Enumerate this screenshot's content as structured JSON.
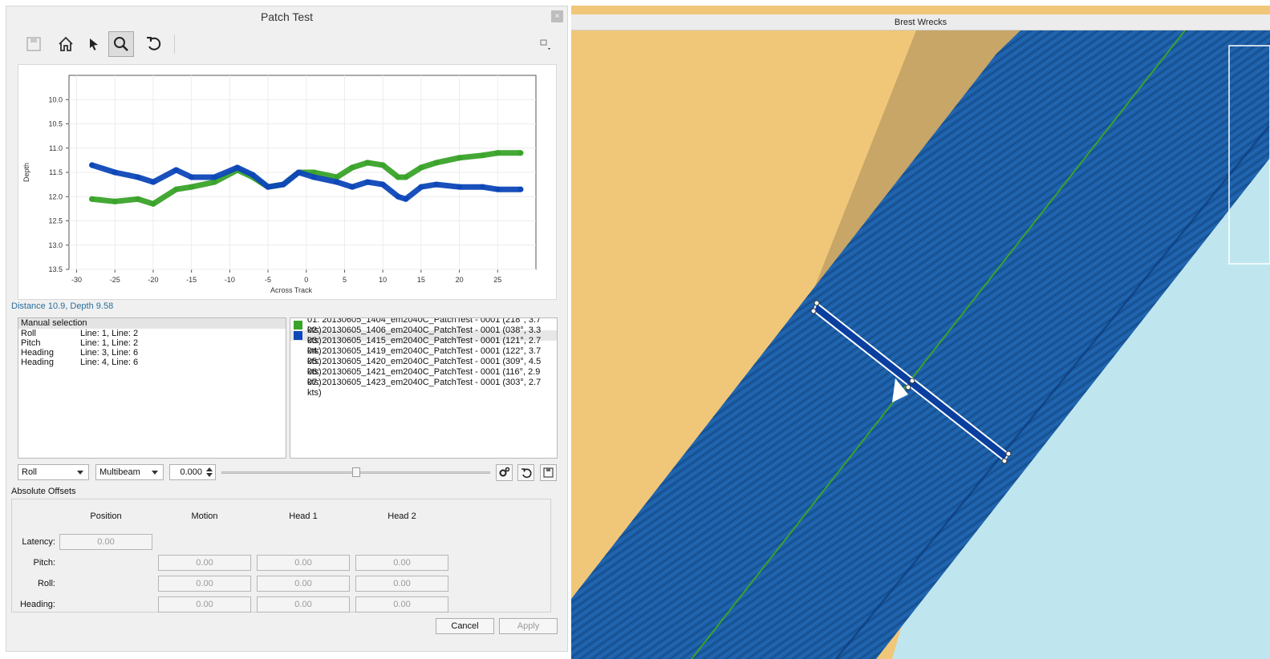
{
  "dialog": {
    "title": "Patch Test",
    "close_glyph": "×"
  },
  "toolbar": {
    "icons": [
      "save-icon",
      "home-icon",
      "pointer-icon",
      "zoom-icon",
      "undo-icon",
      "menu-icon"
    ]
  },
  "chart_data": {
    "type": "scatter",
    "xlabel": "Across Track",
    "ylabel": "Depth",
    "xlim": [
      -31,
      30
    ],
    "ylim": [
      13.5,
      9.5
    ],
    "x_ticks": [
      "-30",
      "-25",
      "-20",
      "-15",
      "-10",
      "-5",
      "0",
      "5",
      "10",
      "15",
      "20",
      "25"
    ],
    "y_ticks": [
      "10.0",
      "10.5",
      "11.0",
      "11.5",
      "12.0",
      "12.5",
      "13.0",
      "13.5"
    ],
    "grid": true,
    "series": [
      {
        "color": "#3aa32a",
        "x": [
          -28,
          -25,
          -22,
          -20,
          -17,
          -15,
          -12,
          -9,
          -7,
          -5,
          -3,
          -1,
          1,
          4,
          6,
          8,
          10,
          12,
          13,
          15,
          17,
          20,
          23,
          25,
          28
        ],
        "y": [
          12.05,
          12.1,
          12.05,
          12.15,
          11.85,
          11.8,
          11.7,
          11.45,
          11.6,
          11.8,
          11.75,
          11.5,
          11.5,
          11.6,
          11.4,
          11.3,
          11.35,
          11.6,
          11.6,
          11.4,
          11.3,
          11.2,
          11.15,
          11.1,
          11.1
        ]
      },
      {
        "color": "#0d47b8",
        "x": [
          -28,
          -25,
          -22,
          -20,
          -17,
          -15,
          -12,
          -9,
          -7,
          -5,
          -3,
          -1,
          1,
          4,
          6,
          8,
          10,
          12,
          13,
          15,
          17,
          20,
          23,
          25,
          28
        ],
        "y": [
          11.35,
          11.5,
          11.6,
          11.7,
          11.45,
          11.6,
          11.6,
          11.4,
          11.55,
          11.8,
          11.75,
          11.5,
          11.6,
          11.7,
          11.8,
          11.7,
          11.75,
          12.0,
          12.05,
          11.8,
          11.75,
          11.8,
          11.8,
          11.85,
          11.85
        ]
      }
    ]
  },
  "status": "Distance 10.9, Depth 9.58",
  "selection": {
    "header": "Manual selection",
    "rows": [
      {
        "name": "Roll",
        "value": "Line: 1, Line: 2"
      },
      {
        "name": "Pitch",
        "value": "Line: 1, Line: 2"
      },
      {
        "name": "Heading",
        "value": "Line: 3, Line: 6"
      },
      {
        "name": "Heading",
        "value": "Line: 4, Line: 6"
      }
    ]
  },
  "lines": [
    {
      "label": "01: 20130605_1404_em2040C_PatchTest - 0001 (218°, 3.7 kts)",
      "color": "#3aa32a"
    },
    {
      "label": "02: 20130605_1406_em2040C_PatchTest - 0001 (038°, 3.3 kts)",
      "color": "#0d47b8"
    },
    {
      "label": "03: 20130605_1415_em2040C_PatchTest - 0001 (121°, 2.7 kts)",
      "color": ""
    },
    {
      "label": "04: 20130605_1419_em2040C_PatchTest - 0001 (122°, 3.7 kts)",
      "color": ""
    },
    {
      "label": "05: 20130605_1420_em2040C_PatchTest - 0001 (309°, 4.5 kts)",
      "color": ""
    },
    {
      "label": "06: 20130605_1421_em2040C_PatchTest - 0001 (116°, 2.9 kts)",
      "color": ""
    },
    {
      "label": "07: 20130605_1423_em2040C_PatchTest - 0001 (303°, 2.7 kts)",
      "color": ""
    }
  ],
  "controls": {
    "parameter": "Roll",
    "sensor": "Multibeam",
    "value": "0.000",
    "slider_fraction": 0.5
  },
  "offsets": {
    "label": "Absolute Offsets",
    "columns": [
      "Position",
      "Motion",
      "Head 1",
      "Head 2"
    ],
    "latency_label": "Latency:",
    "latency": "0.00",
    "rows": [
      {
        "label": "Pitch:",
        "values": [
          "0.00",
          "0.00",
          "0.00"
        ]
      },
      {
        "label": "Roll:",
        "values": [
          "0.00",
          "0.00",
          "0.00"
        ]
      },
      {
        "label": "Heading:",
        "values": [
          "0.00",
          "0.00",
          "0.00"
        ]
      }
    ]
  },
  "buttons": {
    "cancel": "Cancel",
    "apply": "Apply"
  },
  "map": {
    "title": "Brest Wrecks",
    "land_color": "#f0c778",
    "water_color": "#bfe6ef",
    "survey_color": "#1c5fa8"
  }
}
